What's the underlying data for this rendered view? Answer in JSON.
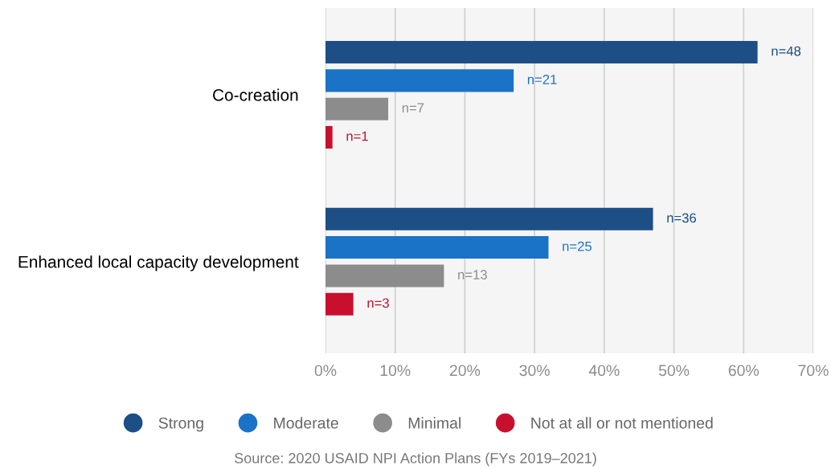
{
  "chart_data": {
    "type": "bar",
    "orientation": "horizontal",
    "categories": [
      "Co-creation",
      "Enhanced local capacity development"
    ],
    "series": [
      {
        "name": "Strong",
        "color": "#1d4f86",
        "values": [
          62,
          47
        ]
      },
      {
        "name": "Moderate",
        "color": "#1a73c6",
        "values": [
          27,
          32
        ]
      },
      {
        "name": "Minimal",
        "color": "#8c8c8c",
        "values": [
          9,
          17
        ]
      },
      {
        "name": "Not at all or not mentioned",
        "color": "#c8102e",
        "values": [
          1,
          4
        ]
      }
    ],
    "xlim": [
      0,
      70
    ],
    "xticks": [
      {
        "value": 0,
        "label": "0%"
      },
      {
        "value": 10,
        "label": "10%"
      },
      {
        "value": 20,
        "label": "20%"
      },
      {
        "value": 30,
        "label": "30%"
      },
      {
        "value": 40,
        "label": "40%"
      },
      {
        "value": 50,
        "label": "50%"
      },
      {
        "value": 60,
        "label": "60%"
      },
      {
        "value": 70,
        "label": "70%"
      }
    ],
    "grid": "x",
    "legend": "bottom",
    "annotations": [
      "n=48",
      "n=21",
      "n=7",
      "n=1",
      "n=36",
      "n=25",
      "n=13",
      "n=3",
      "Source: 2020 USAID NPI Action Plans (FYs 2019–2021)"
    ]
  }
}
